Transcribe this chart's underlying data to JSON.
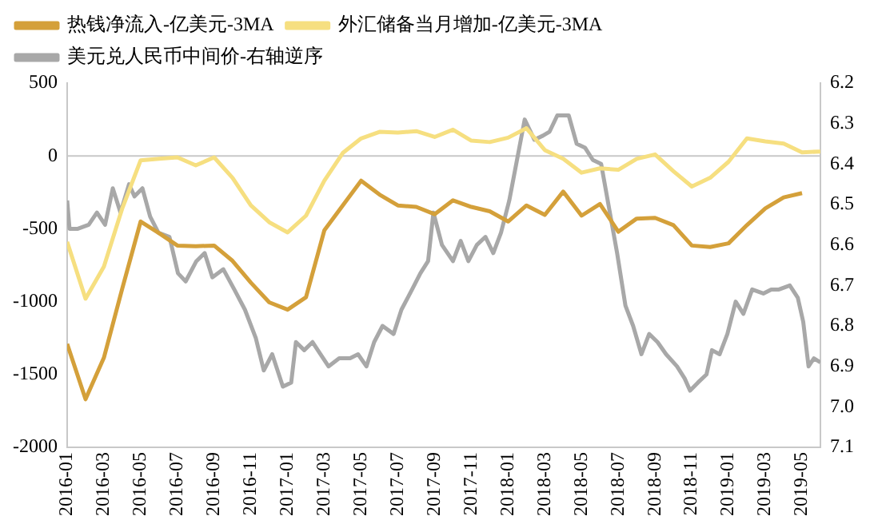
{
  "chart_data": {
    "type": "line",
    "x": [
      "2016-01",
      "2016-02",
      "2016-03",
      "2016-04",
      "2016-05",
      "2016-06",
      "2016-07",
      "2016-08",
      "2016-09",
      "2016-10",
      "2016-11",
      "2016-12",
      "2017-01",
      "2017-02",
      "2017-03",
      "2017-04",
      "2017-05",
      "2017-06",
      "2017-07",
      "2017-08",
      "2017-09",
      "2017-10",
      "2017-11",
      "2017-12",
      "2018-01",
      "2018-02",
      "2018-03",
      "2018-04",
      "2018-05",
      "2018-06",
      "2018-07",
      "2018-08",
      "2018-09",
      "2018-10",
      "2018-11",
      "2018-12",
      "2019-01",
      "2019-02",
      "2019-03",
      "2019-04",
      "2019-05",
      "2019-06"
    ],
    "series": [
      {
        "name": "热钱净流入-亿美元-3MA",
        "color": "#d4a03a",
        "values": [
          -1290,
          -1670,
          -1385,
          -910,
          -450,
          -530,
          -615,
          -620,
          -615,
          -720,
          -870,
          -1005,
          -1055,
          -970,
          -510,
          -340,
          -170,
          -265,
          -340,
          -350,
          -400,
          -305,
          -350,
          -380,
          -450,
          -340,
          -405,
          -245,
          -410,
          -330,
          -520,
          -430,
          -425,
          -475,
          -615,
          -625,
          -600,
          -475,
          -360,
          -285,
          -255,
          null
        ]
      },
      {
        "name": "外汇储备当月增加-亿美元-3MA",
        "color": "#f6df80",
        "values": [
          -590,
          -980,
          -760,
          -360,
          -30,
          -20,
          -10,
          -65,
          -10,
          -150,
          -340,
          -455,
          -525,
          -410,
          -170,
          20,
          120,
          165,
          160,
          170,
          130,
          180,
          105,
          95,
          125,
          190,
          40,
          -20,
          -115,
          -85,
          -95,
          -20,
          10,
          -105,
          -210,
          -150,
          -40,
          120,
          100,
          85,
          25,
          30
        ]
      },
      {
        "name": "美元兑人民币中间价-右轴逆序",
        "color": "#a8a8a8",
        "axis": "y2",
        "x": [
          "2016-01-01",
          "2016-01-05",
          "2016-01-19",
          "2016-02-06",
          "2016-02-19",
          "2016-03-03",
          "2016-03-16",
          "2016-03-29",
          "2016-04-12",
          "2016-04-21",
          "2016-05-04",
          "2016-05-17",
          "2016-05-31",
          "2016-06-18",
          "2016-07-02",
          "2016-07-15",
          "2016-08-02",
          "2016-08-16",
          "2016-08-29",
          "2016-09-16",
          "2016-10-04",
          "2016-10-22",
          "2016-11-09",
          "2016-11-22",
          "2016-12-06",
          "2016-12-24",
          "2017-01-07",
          "2017-01-15",
          "2017-01-29",
          "2017-02-11",
          "2017-02-23",
          "2017-03-08",
          "2017-03-26",
          "2017-04-13",
          "2017-04-26",
          "2017-05-10",
          "2017-05-23",
          "2017-06-06",
          "2017-06-24",
          "2017-07-07",
          "2017-07-25",
          "2017-08-08",
          "2017-08-21",
          "2017-08-30",
          "2017-09-13",
          "2017-10-01",
          "2017-10-14",
          "2017-10-27",
          "2017-11-10",
          "2017-11-24",
          "2017-12-07",
          "2017-12-20",
          "2018-01-03",
          "2018-01-16",
          "2018-01-29",
          "2018-02-13",
          "2018-02-26",
          "2018-03-09",
          "2018-03-22",
          "2018-04-10",
          "2018-04-23",
          "2018-05-07",
          "2018-05-20",
          "2018-06-03",
          "2018-06-16",
          "2018-06-29",
          "2018-07-13",
          "2018-07-26",
          "2018-08-09",
          "2018-08-22",
          "2018-09-05",
          "2018-09-19",
          "2018-10-07",
          "2018-10-20",
          "2018-10-29",
          "2018-11-11",
          "2018-11-25",
          "2018-12-04",
          "2018-12-17",
          "2018-12-30",
          "2019-01-13",
          "2019-01-26",
          "2019-02-09",
          "2019-02-26",
          "2019-03-11",
          "2019-03-24",
          "2019-04-11",
          "2019-04-24",
          "2019-05-03",
          "2019-05-12",
          "2019-05-21",
          "2019-06-01"
        ],
        "values": [
          6.49,
          6.56,
          6.56,
          6.55,
          6.52,
          6.55,
          6.46,
          6.52,
          6.45,
          6.48,
          6.46,
          6.53,
          6.57,
          6.58,
          6.67,
          6.69,
          6.64,
          6.62,
          6.68,
          6.66,
          6.71,
          6.76,
          6.83,
          6.91,
          6.87,
          6.95,
          6.94,
          6.84,
          6.86,
          6.84,
          6.87,
          6.9,
          6.88,
          6.88,
          6.87,
          6.9,
          6.84,
          6.8,
          6.82,
          6.76,
          6.71,
          6.67,
          6.64,
          6.52,
          6.6,
          6.64,
          6.59,
          6.64,
          6.6,
          6.58,
          6.62,
          6.57,
          6.49,
          6.39,
          6.29,
          6.34,
          6.33,
          6.32,
          6.28,
          6.28,
          6.35,
          6.36,
          6.39,
          6.4,
          6.51,
          6.62,
          6.75,
          6.8,
          6.87,
          6.82,
          6.84,
          6.87,
          6.9,
          6.93,
          6.96,
          6.94,
          6.92,
          6.86,
          6.87,
          6.82,
          6.74,
          6.77,
          6.71,
          6.72,
          6.71,
          6.71,
          6.7,
          6.73,
          6.79,
          6.9,
          6.88,
          6.89
        ]
      }
    ],
    "xlim": [
      "2016-01",
      "2019-06"
    ],
    "xticks": [
      "2016-01",
      "2016-03",
      "2016-05",
      "2016-07",
      "2016-09",
      "2016-11",
      "2017-01",
      "2017-03",
      "2017-05",
      "2017-07",
      "2017-09",
      "2017-11",
      "2018-01",
      "2018-03",
      "2018-05",
      "2018-07",
      "2018-09",
      "2018-11",
      "2019-01",
      "2019-03",
      "2019-05"
    ],
    "ylim": [
      -2000,
      500
    ],
    "yticks": [
      -2000,
      -1500,
      -1000,
      -500,
      0,
      500
    ],
    "y2lim": [
      7.1,
      6.2
    ],
    "y2ticks": [
      6.2,
      6.3,
      6.4,
      6.5,
      6.6,
      6.7,
      6.8,
      6.9,
      {
        "value": 7,
        "label": "7.0"
      },
      7.1
    ],
    "ref_lines": [
      {
        "axis": "y",
        "value": 0,
        "color": "#c8c8c8"
      }
    ],
    "grid": false,
    "legend": "top",
    "marker": "none",
    "line_style": "solid"
  }
}
